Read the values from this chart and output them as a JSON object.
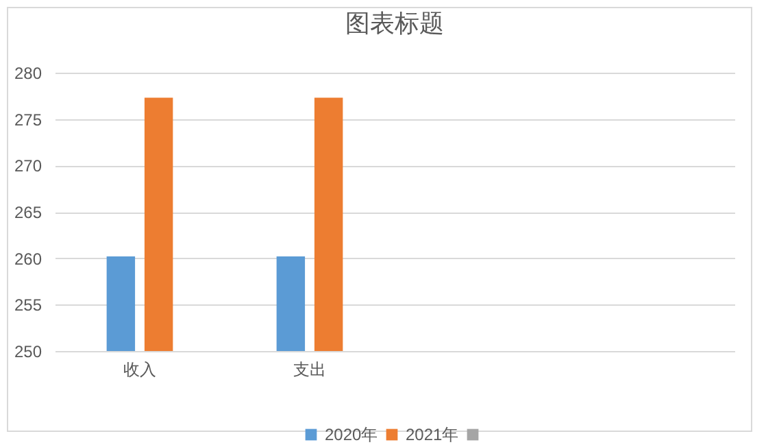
{
  "chart_data": {
    "type": "bar",
    "title": "图表标题",
    "categories": [
      "收入",
      "支出",
      null,
      null
    ],
    "series": [
      {
        "name": "2020年",
        "color": "#5b9bd5",
        "values": [
          260.2,
          260.2,
          null,
          null
        ]
      },
      {
        "name": "2021年",
        "color": "#ed7d31",
        "values": [
          277.3,
          277.3,
          null,
          null
        ]
      },
      {
        "color": "#a5a5a5",
        "values": [
          null,
          null,
          null,
          null
        ]
      }
    ],
    "ylim": [
      250,
      280
    ],
    "yticks": [
      250,
      255,
      260,
      265,
      270,
      275,
      280
    ],
    "grid": "y",
    "legend": "bottom"
  }
}
